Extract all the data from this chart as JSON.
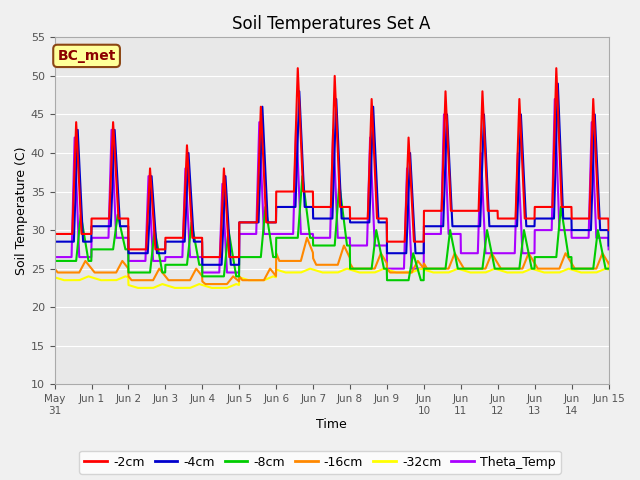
{
  "title": "Soil Temperatures Set A",
  "xlabel": "Time",
  "ylabel": "Soil Temperature (C)",
  "ylim": [
    10,
    55
  ],
  "yticks": [
    10,
    15,
    20,
    25,
    30,
    35,
    40,
    45,
    50,
    55
  ],
  "background_color": "#f0f0f0",
  "plot_bg_color": "#e8e8e8",
  "annotation_text": "BC_met",
  "annotation_color": "#8b0000",
  "annotation_bg": "#ffff99",
  "series_colors": {
    "-2cm": "#ff0000",
    "-4cm": "#0000cc",
    "-8cm": "#00cc00",
    "-16cm": "#ff8800",
    "-32cm": "#ffff00",
    "Theta_Temp": "#aa00ff"
  },
  "linewidth": 1.5,
  "legend_fontsize": 9,
  "title_fontsize": 12
}
